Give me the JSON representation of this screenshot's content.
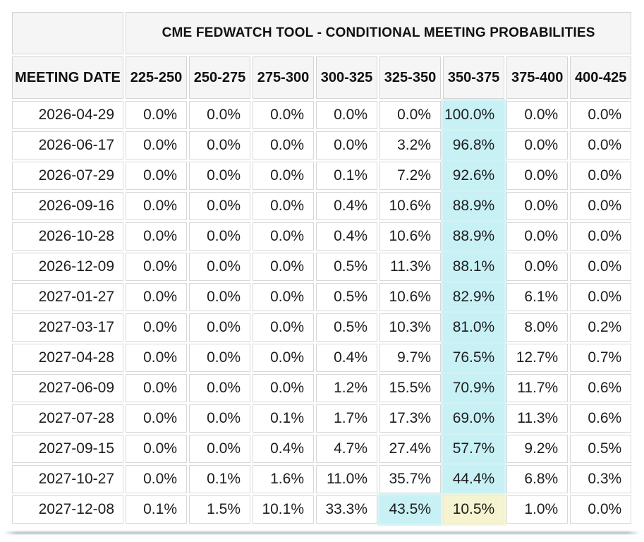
{
  "table": {
    "title": "CME FEDWATCH TOOL - CONDITIONAL MEETING PROBABILITIES",
    "columns": [
      "MEETING DATE",
      "225-250",
      "250-275",
      "275-300",
      "300-325",
      "325-350",
      "350-375",
      "375-400",
      "400-425"
    ],
    "rows": [
      {
        "date": "2026-04-29",
        "values": [
          "0.0%",
          "0.0%",
          "0.0%",
          "0.0%",
          "0.0%",
          "100.0%",
          "0.0%",
          "0.0%"
        ],
        "hl": {
          "5": "cyan"
        }
      },
      {
        "date": "2026-06-17",
        "values": [
          "0.0%",
          "0.0%",
          "0.0%",
          "0.0%",
          "3.2%",
          "96.8%",
          "0.0%",
          "0.0%"
        ],
        "hl": {
          "5": "cyan"
        }
      },
      {
        "date": "2026-07-29",
        "values": [
          "0.0%",
          "0.0%",
          "0.0%",
          "0.1%",
          "7.2%",
          "92.6%",
          "0.0%",
          "0.0%"
        ],
        "hl": {
          "5": "cyan"
        }
      },
      {
        "date": "2026-09-16",
        "values": [
          "0.0%",
          "0.0%",
          "0.0%",
          "0.4%",
          "10.6%",
          "88.9%",
          "0.0%",
          "0.0%"
        ],
        "hl": {
          "5": "cyan"
        }
      },
      {
        "date": "2026-10-28",
        "values": [
          "0.0%",
          "0.0%",
          "0.0%",
          "0.4%",
          "10.6%",
          "88.9%",
          "0.0%",
          "0.0%"
        ],
        "hl": {
          "5": "cyan"
        }
      },
      {
        "date": "2026-12-09",
        "values": [
          "0.0%",
          "0.0%",
          "0.0%",
          "0.5%",
          "11.3%",
          "88.1%",
          "0.0%",
          "0.0%"
        ],
        "hl": {
          "5": "cyan"
        }
      },
      {
        "date": "2027-01-27",
        "values": [
          "0.0%",
          "0.0%",
          "0.0%",
          "0.5%",
          "10.6%",
          "82.9%",
          "6.1%",
          "0.0%"
        ],
        "hl": {
          "5": "cyan"
        }
      },
      {
        "date": "2027-03-17",
        "values": [
          "0.0%",
          "0.0%",
          "0.0%",
          "0.5%",
          "10.3%",
          "81.0%",
          "8.0%",
          "0.2%"
        ],
        "hl": {
          "5": "cyan"
        }
      },
      {
        "date": "2027-04-28",
        "values": [
          "0.0%",
          "0.0%",
          "0.0%",
          "0.4%",
          "9.7%",
          "76.5%",
          "12.7%",
          "0.7%"
        ],
        "hl": {
          "5": "cyan"
        }
      },
      {
        "date": "2027-06-09",
        "values": [
          "0.0%",
          "0.0%",
          "0.0%",
          "1.2%",
          "15.5%",
          "70.9%",
          "11.7%",
          "0.6%"
        ],
        "hl": {
          "5": "cyan"
        }
      },
      {
        "date": "2027-07-28",
        "values": [
          "0.0%",
          "0.0%",
          "0.1%",
          "1.7%",
          "17.3%",
          "69.0%",
          "11.3%",
          "0.6%"
        ],
        "hl": {
          "5": "cyan"
        }
      },
      {
        "date": "2027-09-15",
        "values": [
          "0.0%",
          "0.0%",
          "0.4%",
          "4.7%",
          "27.4%",
          "57.7%",
          "9.2%",
          "0.5%"
        ],
        "hl": {
          "5": "cyan"
        }
      },
      {
        "date": "2027-10-27",
        "values": [
          "0.0%",
          "0.1%",
          "1.6%",
          "11.0%",
          "35.7%",
          "44.4%",
          "6.8%",
          "0.3%"
        ],
        "hl": {
          "5": "cyan"
        }
      },
      {
        "date": "2027-12-08",
        "values": [
          "0.1%",
          "1.5%",
          "10.1%",
          "33.3%",
          "43.5%",
          "10.5%",
          "1.0%",
          "0.0%"
        ],
        "hl": {
          "4": "cyan",
          "5": "yellow"
        }
      }
    ]
  },
  "colors": {
    "highlight_cyan": "#c8f1f5",
    "highlight_yellow": "#f6f3d0",
    "header_bg": "#f6f5f5",
    "cell_border": "#d8d8d8",
    "text": "#1d1d1f"
  },
  "chart_data": {
    "type": "table",
    "title": "CME FEDWATCH TOOL - CONDITIONAL MEETING PROBABILITIES",
    "columns": [
      "225-250",
      "250-275",
      "275-300",
      "300-325",
      "325-350",
      "350-375",
      "375-400",
      "400-425"
    ],
    "rows": [
      "2026-04-29",
      "2026-06-17",
      "2026-07-29",
      "2026-09-16",
      "2026-10-28",
      "2026-12-09",
      "2027-01-27",
      "2027-03-17",
      "2027-04-28",
      "2027-06-09",
      "2027-07-28",
      "2027-09-15",
      "2027-10-27",
      "2027-12-08"
    ],
    "values_pct": [
      [
        0.0,
        0.0,
        0.0,
        0.0,
        0.0,
        100.0,
        0.0,
        0.0
      ],
      [
        0.0,
        0.0,
        0.0,
        0.0,
        3.2,
        96.8,
        0.0,
        0.0
      ],
      [
        0.0,
        0.0,
        0.0,
        0.1,
        7.2,
        92.6,
        0.0,
        0.0
      ],
      [
        0.0,
        0.0,
        0.0,
        0.4,
        10.6,
        88.9,
        0.0,
        0.0
      ],
      [
        0.0,
        0.0,
        0.0,
        0.4,
        10.6,
        88.9,
        0.0,
        0.0
      ],
      [
        0.0,
        0.0,
        0.0,
        0.5,
        11.3,
        88.1,
        0.0,
        0.0
      ],
      [
        0.0,
        0.0,
        0.0,
        0.5,
        10.6,
        82.9,
        6.1,
        0.0
      ],
      [
        0.0,
        0.0,
        0.0,
        0.5,
        10.3,
        81.0,
        8.0,
        0.2
      ],
      [
        0.0,
        0.0,
        0.0,
        0.4,
        9.7,
        76.5,
        12.7,
        0.7
      ],
      [
        0.0,
        0.0,
        0.0,
        1.2,
        15.5,
        70.9,
        11.7,
        0.6
      ],
      [
        0.0,
        0.0,
        0.1,
        1.7,
        17.3,
        69.0,
        11.3,
        0.6
      ],
      [
        0.0,
        0.0,
        0.4,
        4.7,
        27.4,
        57.7,
        9.2,
        0.5
      ],
      [
        0.0,
        0.1,
        1.6,
        11.0,
        35.7,
        44.4,
        6.8,
        0.3
      ],
      [
        0.1,
        1.5,
        10.1,
        33.3,
        43.5,
        10.5,
        1.0,
        0.0
      ]
    ],
    "highlights": {
      "cyan_cells": "column 350-375 for all rows except 2027-12-08; column 325-350 for row 2027-12-08",
      "yellow_cells": "column 350-375 for row 2027-12-08"
    },
    "layout": {
      "first_column_header": "MEETING DATE",
      "grid": true,
      "legend": false
    }
  }
}
